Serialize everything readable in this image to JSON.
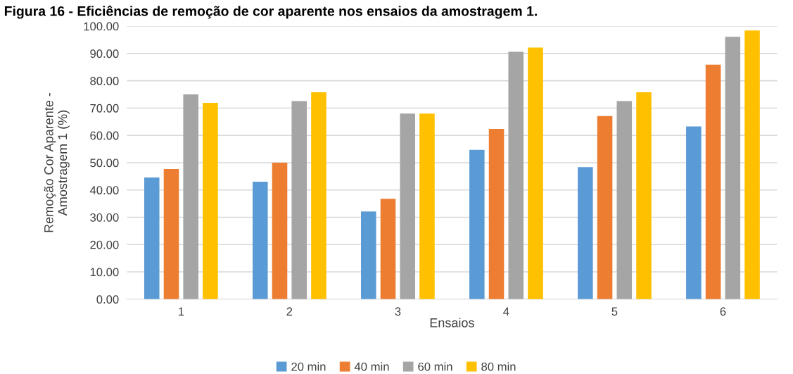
{
  "chart_data": {
    "type": "bar",
    "title": "Figura 16 - Eficiências de remoção de cor aparente nos ensaios da amostragem 1.",
    "xlabel": "Ensaios",
    "ylabel": "Remoção Cor Aparente -\nAmostragem 1 (%)",
    "categories": [
      "1",
      "2",
      "3",
      "4",
      "5",
      "6"
    ],
    "series": [
      {
        "name": "20 min",
        "color": "#5b9bd5",
        "values": [
          44.6,
          43.0,
          32.1,
          54.7,
          48.4,
          63.3
        ]
      },
      {
        "name": "40 min",
        "color": "#ed7d31",
        "values": [
          47.7,
          50.0,
          36.8,
          62.4,
          67.1,
          85.9
        ]
      },
      {
        "name": "60 min",
        "color": "#a5a5a5",
        "values": [
          75.0,
          72.6,
          68.0,
          90.6,
          72.6,
          96.1
        ]
      },
      {
        "name": "80 min",
        "color": "#ffc000",
        "values": [
          71.9,
          75.8,
          68.0,
          92.2,
          75.8,
          98.4
        ]
      }
    ],
    "ylim": [
      0,
      100
    ],
    "yticks": [
      {
        "value": 0,
        "label": "0.00"
      },
      {
        "value": 10,
        "label": "10.00"
      },
      {
        "value": 20,
        "label": "20.00"
      },
      {
        "value": 30,
        "label": "30.00"
      },
      {
        "value": 40,
        "label": "40.00"
      },
      {
        "value": 50,
        "label": "50.00"
      },
      {
        "value": 60,
        "label": "60.00"
      },
      {
        "value": 70,
        "label": "70.00"
      },
      {
        "value": 80,
        "label": "80.00"
      },
      {
        "value": 90,
        "label": "90.00"
      },
      {
        "value": 100,
        "label": "100.00"
      }
    ],
    "grid": "y",
    "legend": "bottom"
  }
}
